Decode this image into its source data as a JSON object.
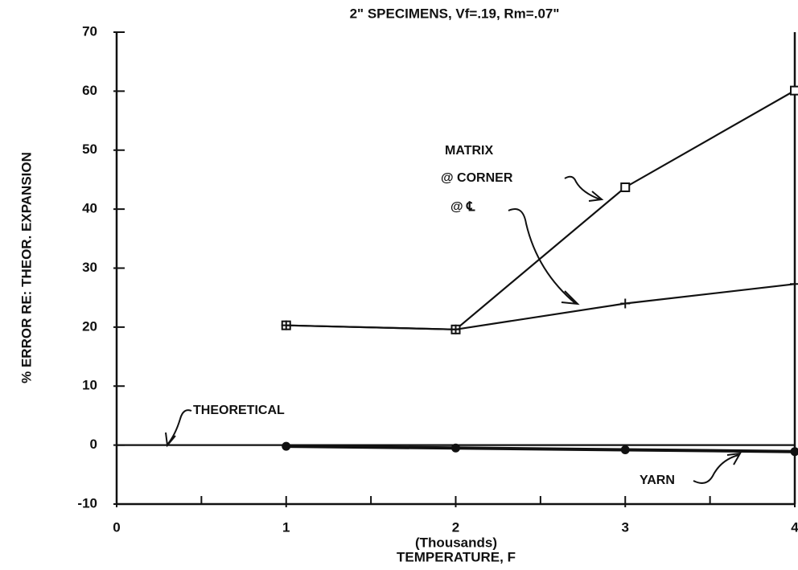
{
  "chart_data": {
    "type": "line",
    "title": "2\" SPECIMENS, Vf=.19, Rm=.07\"",
    "ylabel": "% ERROR RE: THEOR. EXPANSION",
    "xlabel": "TEMPERATURE, F",
    "xunit": "(Thousands)",
    "xlim": [
      0,
      4
    ],
    "xticks": [
      0,
      1,
      2,
      3,
      4
    ],
    "xminorticks": [
      0.5,
      1.5,
      2.5,
      3.5
    ],
    "ylim": [
      -10,
      70
    ],
    "yticks": [
      -10,
      0,
      10,
      20,
      30,
      40,
      50,
      60,
      70
    ],
    "annotations": [
      "MATRIX",
      "@ CORNER",
      "@ ℄",
      "THEORETICAL",
      "YARN"
    ],
    "series": [
      {
        "name": "@ CORNER",
        "color": "#111",
        "marker": "square",
        "x": [
          1,
          2,
          3,
          4
        ],
        "values": [
          20.3,
          19.6,
          43.7,
          60.1
        ]
      },
      {
        "name": "@ ℄",
        "color": "#111",
        "marker": "plus",
        "x": [
          1,
          2,
          3,
          4
        ],
        "values": [
          20.3,
          19.6,
          24,
          27.3
        ]
      },
      {
        "name": "YARN",
        "color": "#111",
        "marker": "dot",
        "x": [
          1,
          2,
          3,
          4
        ],
        "values": [
          -0.2,
          -0.5,
          -0.8,
          -1.1
        ]
      },
      {
        "name": "THEORETICAL",
        "color": "#111",
        "marker": "none",
        "x": [
          0,
          4
        ],
        "values": [
          0,
          0
        ]
      }
    ]
  }
}
